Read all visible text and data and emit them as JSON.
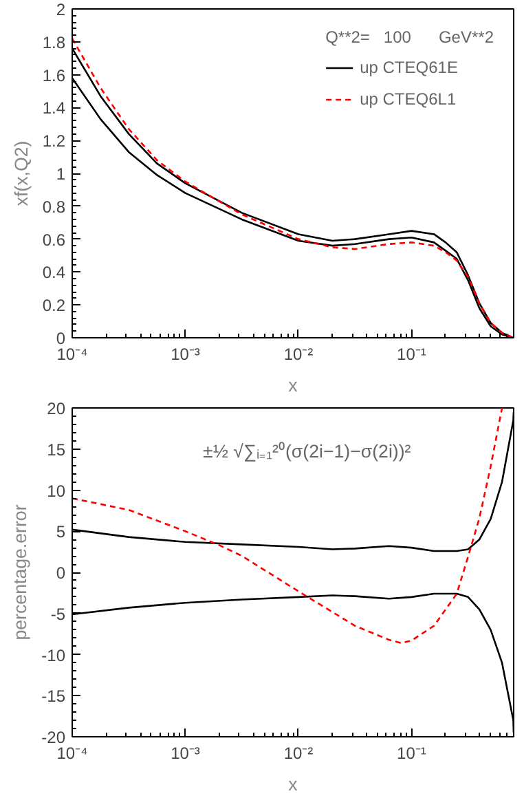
{
  "chart_data": [
    {
      "type": "line",
      "ylabel": "xf(x,Q2)",
      "xlabel": "x",
      "legend_title": "Q**2=   100      GeV**2",
      "legend": "top right",
      "log": "x",
      "grid": false,
      "marker": "none",
      "xlim": [
        0.0001,
        0.8
      ],
      "xticks": [
        {
          "value": 0.0001,
          "label": "10⁻⁴"
        },
        {
          "value": 0.001,
          "label": "10⁻³"
        },
        {
          "value": 0.01,
          "label": "10⁻²"
        },
        {
          "value": 0.1,
          "label": "10⁻¹"
        }
      ],
      "ylim": [
        0,
        2
      ],
      "yticks": [
        0,
        0.2,
        0.4,
        0.6,
        0.8,
        1,
        1.2,
        1.4,
        1.6,
        1.8,
        2
      ],
      "x": [
        0.0001,
        0.000178,
        0.000316,
        0.000562,
        0.001,
        0.00316,
        0.01,
        0.02,
        0.0316,
        0.0631,
        0.1,
        0.158,
        0.2,
        0.251,
        0.316,
        0.398,
        0.501,
        0.631,
        0.794
      ],
      "series": [
        {
          "name": "up CTEQ61E",
          "color": "#000000",
          "line_style": "solid",
          "values": [
            1.76,
            1.47,
            1.24,
            1.06,
            0.94,
            0.76,
            0.63,
            0.59,
            0.6,
            0.63,
            0.65,
            0.63,
            0.58,
            0.52,
            0.38,
            0.21,
            0.09,
            0.03,
            0
          ]
        },
        {
          "color": "#000000",
          "line_style": "solid",
          "values": [
            1.58,
            1.33,
            1.13,
            0.99,
            0.88,
            0.72,
            0.59,
            0.56,
            0.57,
            0.6,
            0.61,
            0.58,
            0.53,
            0.48,
            0.35,
            0.18,
            0.07,
            0.02,
            0
          ]
        },
        {
          "name": "up CTEQ6L1",
          "color": "#ff0000",
          "line_style": "dashed",
          "values": [
            1.82,
            1.52,
            1.27,
            1.08,
            0.95,
            0.75,
            0.6,
            0.55,
            0.54,
            0.57,
            0.58,
            0.56,
            0.52,
            0.47,
            0.37,
            0.21,
            0.09,
            0.03,
            0
          ]
        }
      ]
    },
    {
      "type": "line",
      "ylabel": "percentage.error",
      "xlabel": "x",
      "legend": false,
      "log": "x",
      "grid": false,
      "marker": "none",
      "annotations": [
        "±½ √∑ᵢ₌₁²⁰(σ(2i−1)−σ(2i))²"
      ],
      "xlim": [
        0.0001,
        0.8
      ],
      "xticks": [
        {
          "value": 0.0001,
          "label": "10⁻⁴"
        },
        {
          "value": 0.001,
          "label": "10⁻³"
        },
        {
          "value": 0.01,
          "label": "10⁻²"
        },
        {
          "value": 0.1,
          "label": "10⁻¹"
        }
      ],
      "ylim": [
        -20,
        20
      ],
      "yticks": [
        -20,
        -15,
        -10,
        -5,
        0,
        5,
        10,
        15,
        20
      ],
      "series": [
        {
          "color": "#000000",
          "line_style": "solid",
          "x": [
            0.0001,
            0.000316,
            0.001,
            0.00316,
            0.01,
            0.02,
            0.0316,
            0.0631,
            0.1,
            0.158,
            0.251,
            0.316,
            0.398,
            0.501,
            0.631,
            0.794,
            0.8
          ],
          "values": [
            5.2,
            4.3,
            3.7,
            3.4,
            3.1,
            2.8,
            2.9,
            3.2,
            3.0,
            2.6,
            2.6,
            2.8,
            4.0,
            6.5,
            11,
            18.5,
            19.5
          ]
        },
        {
          "color": "#000000",
          "line_style": "solid",
          "x": [
            0.0001,
            0.000316,
            0.001,
            0.00316,
            0.01,
            0.02,
            0.0316,
            0.0631,
            0.1,
            0.158,
            0.251,
            0.316,
            0.398,
            0.501,
            0.631,
            0.794,
            0.8
          ],
          "values": [
            -5.1,
            -4.3,
            -3.7,
            -3.3,
            -3.0,
            -2.8,
            -2.9,
            -3.2,
            -3.0,
            -2.6,
            -2.6,
            -3.0,
            -4.5,
            -7,
            -11,
            -18,
            -19.5
          ]
        },
        {
          "color": "#ff0000",
          "line_style": "dashed",
          "x": [
            0.0001,
            0.000316,
            0.001,
            0.002,
            0.00316,
            0.01,
            0.0316,
            0.0631,
            0.0813,
            0.1,
            0.158,
            0.251,
            0.316,
            0.398,
            0.501,
            0.631
          ],
          "values": [
            9,
            7.6,
            5.0,
            3.3,
            2,
            -2.3,
            -6.5,
            -8.2,
            -8.6,
            -8.3,
            -6.5,
            -2.6,
            1.9,
            6.6,
            12.9,
            20
          ]
        }
      ]
    }
  ]
}
